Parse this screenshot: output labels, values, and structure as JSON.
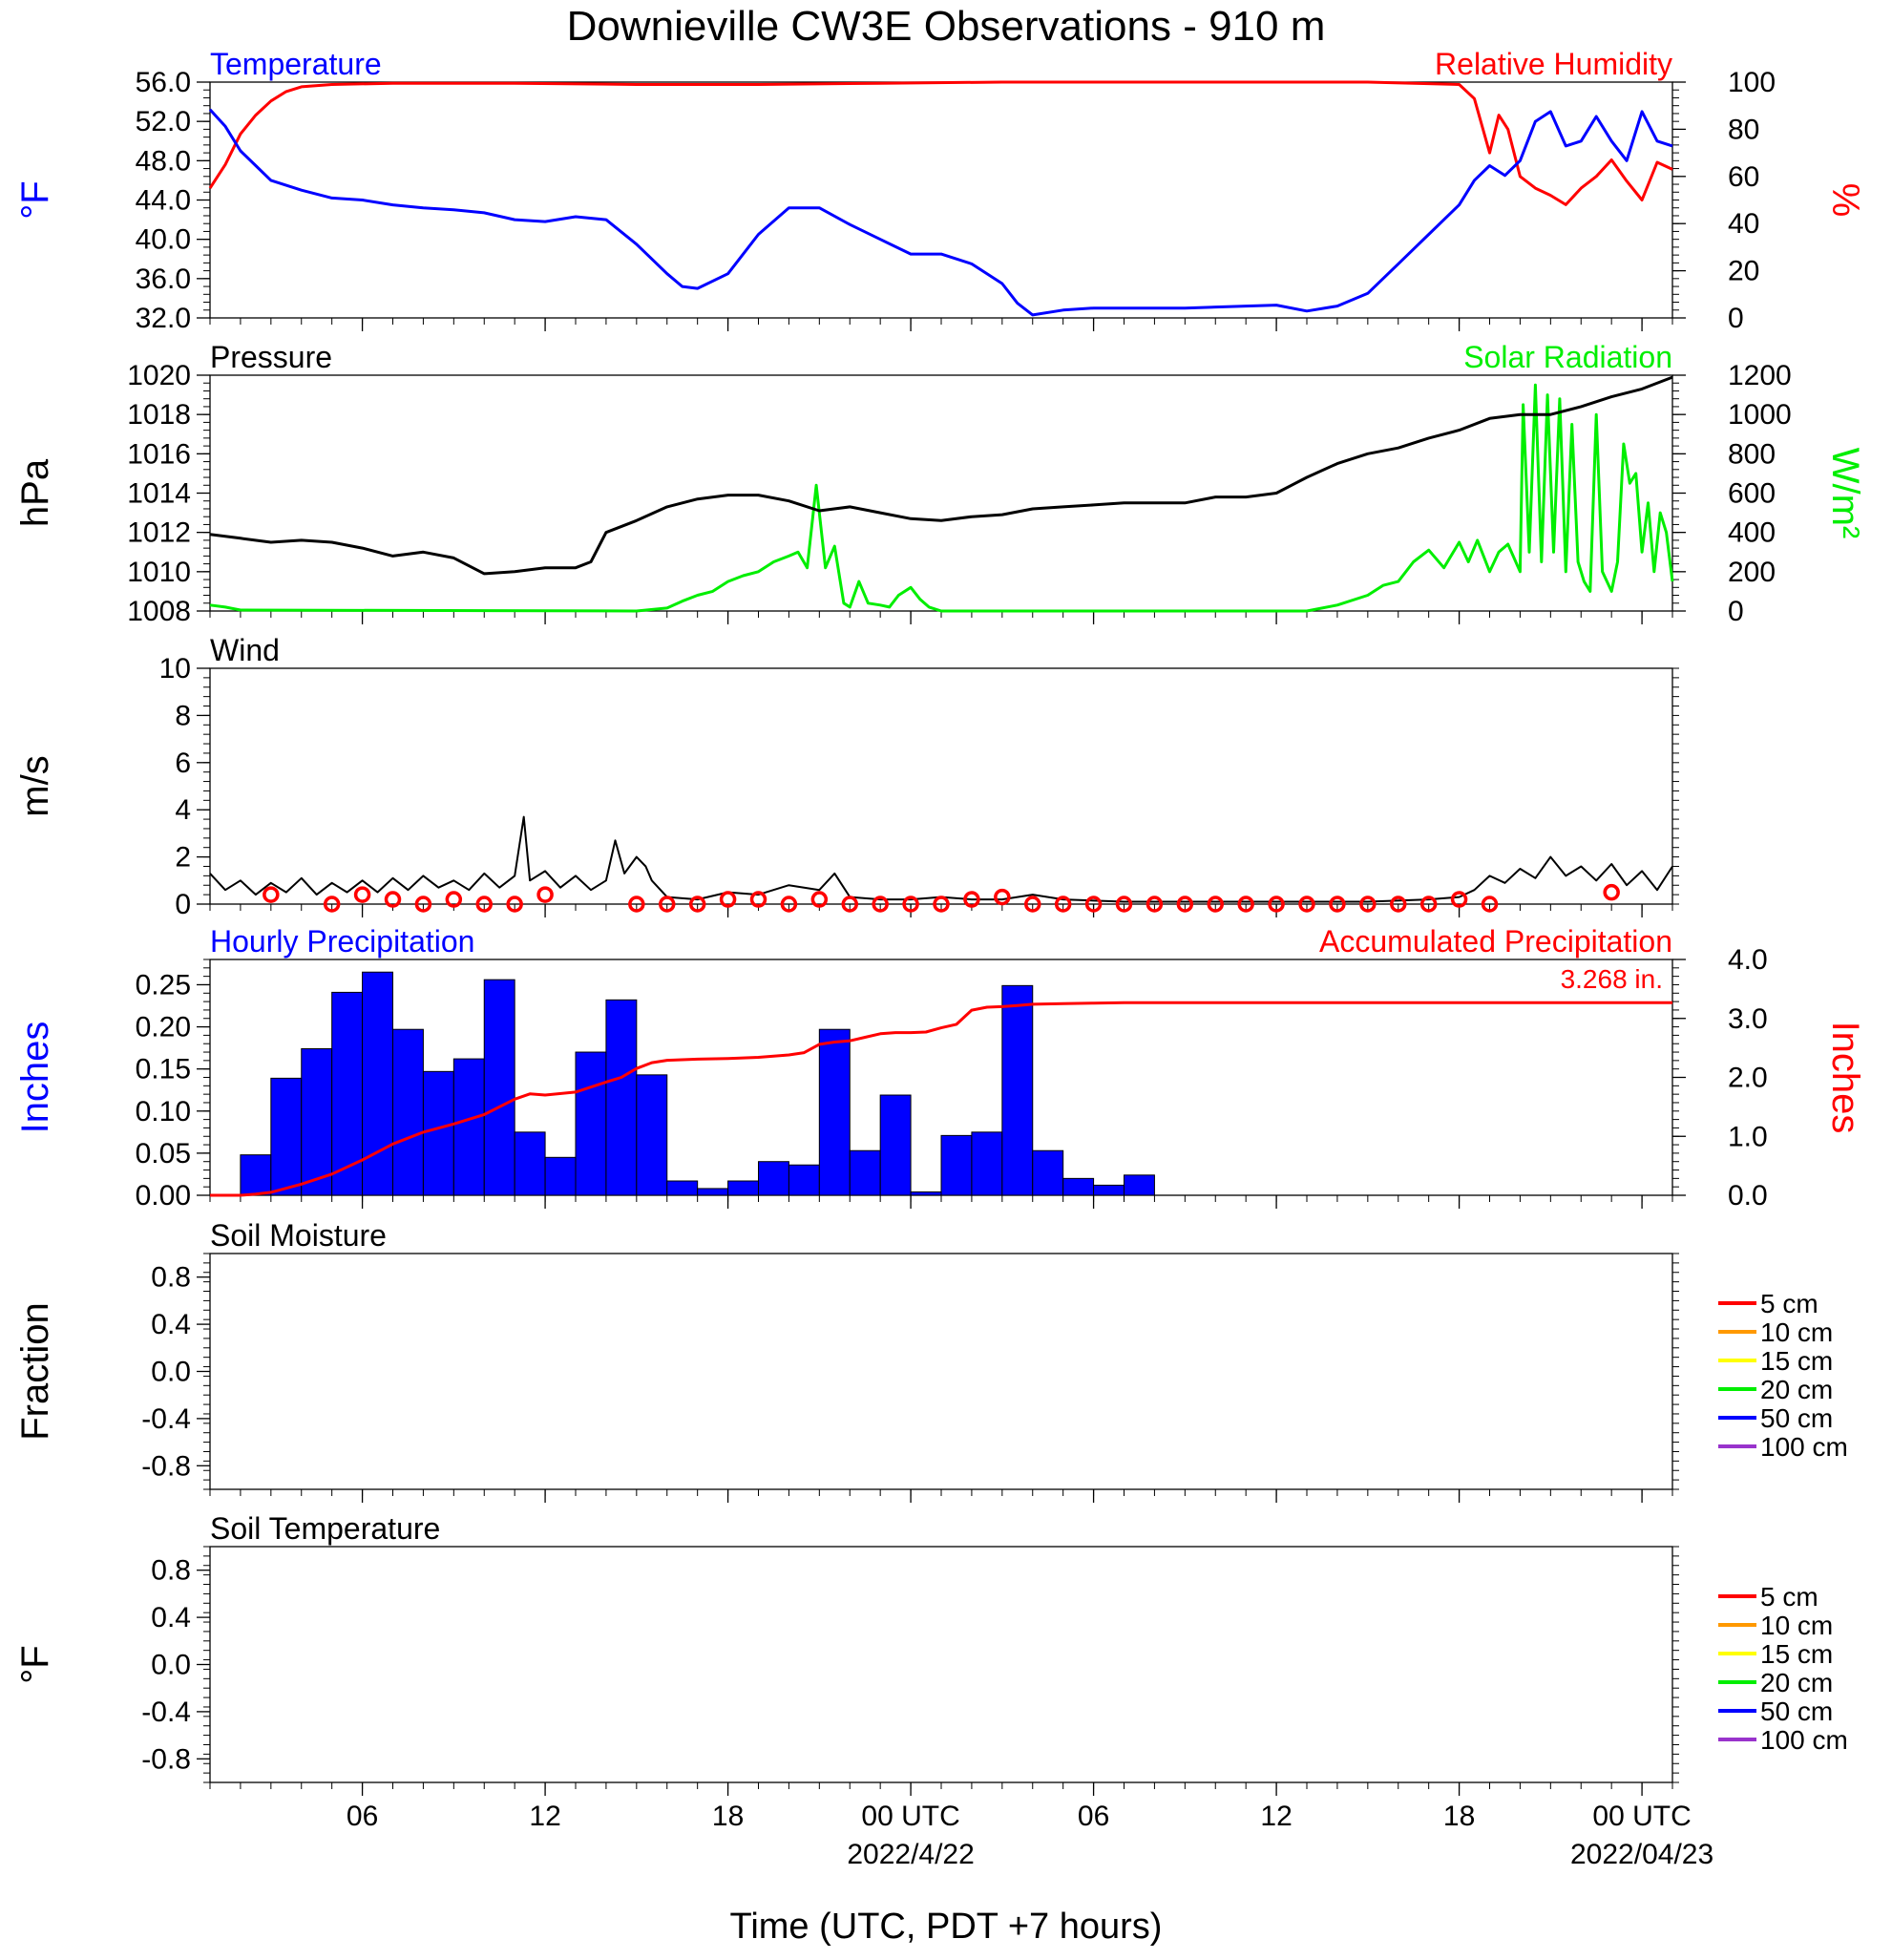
{
  "title": "Downieville CW3E Observations - 910 m",
  "x_axis": {
    "label": "Time (UTC, PDT +7 hours)",
    "range_hours": [
      0,
      48
    ],
    "ticks": [
      {
        "h": 5,
        "label": "06",
        "sub": ""
      },
      {
        "h": 11,
        "label": "12",
        "sub": ""
      },
      {
        "h": 17,
        "label": "18",
        "sub": ""
      },
      {
        "h": 23,
        "label": "00 UTC",
        "sub": "2022/4/22"
      },
      {
        "h": 29,
        "label": "06",
        "sub": ""
      },
      {
        "h": 35,
        "label": "12",
        "sub": ""
      },
      {
        "h": 41,
        "label": "18",
        "sub": ""
      },
      {
        "h": 47,
        "label": "00 UTC",
        "sub": "2022/04/23"
      }
    ]
  },
  "colors": {
    "temperature": "#0000ff",
    "humidity": "#ff0000",
    "pressure": "#000000",
    "solar": "#00ee00",
    "wind": "#000000",
    "wind_barb": "#ff0000",
    "precip_bar": "#0000ff",
    "precip_accum": "#ff0000"
  },
  "chart_data": [
    {
      "type": "line",
      "title_left": "Temperature",
      "title_right": "Relative Humidity",
      "ylabel_left": "°F",
      "ylabel_right": "%",
      "ylim_left": [
        32,
        56
      ],
      "ylim_right": [
        0,
        100
      ],
      "yticks_left": [
        "32.0",
        "36.0",
        "40.0",
        "44.0",
        "48.0",
        "52.0",
        "56.0"
      ],
      "yticks_right": [
        "0",
        "20",
        "40",
        "60",
        "80",
        "100"
      ],
      "series": [
        {
          "name": "Temperature",
          "axis": "left",
          "x": [
            0,
            0.5,
            1,
            1.5,
            2,
            3,
            4,
            5,
            6,
            7,
            8,
            9,
            10,
            11,
            12,
            13,
            14,
            15,
            15.5,
            16,
            17,
            18,
            19,
            20,
            21,
            22,
            23,
            24,
            25,
            26,
            26.5,
            27,
            28,
            29,
            30,
            32,
            34,
            35,
            36,
            37,
            38,
            39,
            40,
            41,
            41.5,
            42,
            42.5,
            43,
            43.5,
            44,
            44.5,
            45,
            45.5,
            46,
            46.5,
            47,
            47.5,
            48
          ],
          "y": [
            53.2,
            51.5,
            49,
            47.5,
            46,
            45,
            44.2,
            44,
            43.5,
            43.2,
            43,
            42.7,
            42,
            41.8,
            42.3,
            42,
            39.5,
            36.5,
            35.2,
            35,
            36.5,
            40.5,
            43.2,
            43.2,
            41.5,
            40,
            38.5,
            38.5,
            37.5,
            35.5,
            33.5,
            32.3,
            32.8,
            33,
            33,
            33,
            33.2,
            33.3,
            32.7,
            33.2,
            34.5,
            37.5,
            40.5,
            43.5,
            46,
            47.5,
            46.5,
            48,
            52,
            53,
            49.5,
            50,
            52.5,
            50,
            48,
            53,
            50,
            49.5
          ]
        },
        {
          "name": "Relative Humidity",
          "axis": "right",
          "x": [
            0,
            0.5,
            1,
            1.5,
            2,
            2.5,
            3,
            4,
            6,
            10,
            14,
            18,
            22,
            26,
            30,
            34,
            38,
            41,
            41.5,
            42,
            42.3,
            42.6,
            43,
            43.5,
            44,
            44.5,
            45,
            45.5,
            46,
            46.5,
            47,
            47.5,
            48
          ],
          "y": [
            55,
            65,
            78,
            86,
            92,
            96,
            98,
            99,
            99.5,
            99.5,
            99,
            99,
            99.5,
            100,
            100,
            100,
            100,
            99,
            93,
            70,
            86,
            80,
            60,
            55,
            52,
            48,
            55,
            60,
            67,
            58,
            50,
            66,
            63
          ]
        }
      ]
    },
    {
      "type": "line",
      "title_left": "Pressure",
      "title_right": "Solar Radiation",
      "ylabel_left": "hPa",
      "ylabel_right": "W/m²",
      "ylim_left": [
        1008,
        1020
      ],
      "ylim_right": [
        0,
        1200
      ],
      "yticks_left": [
        "1008",
        "1010",
        "1012",
        "1014",
        "1016",
        "1018",
        "1020"
      ],
      "yticks_right": [
        "0",
        "200",
        "400",
        "600",
        "800",
        "1000",
        "1200"
      ],
      "series": [
        {
          "name": "Pressure",
          "axis": "left",
          "x": [
            0,
            1,
            2,
            3,
            4,
            5,
            6,
            7,
            8,
            9,
            10,
            11,
            12,
            12.5,
            13,
            14,
            15,
            16,
            17,
            18,
            19,
            20,
            21,
            22,
            23,
            24,
            25,
            26,
            27,
            28,
            29,
            30,
            31,
            32,
            33,
            34,
            35,
            36,
            37,
            38,
            39,
            40,
            41,
            42,
            43,
            44,
            45,
            46,
            47,
            48
          ],
          "y": [
            1011.9,
            1011.7,
            1011.5,
            1011.6,
            1011.5,
            1011.2,
            1010.8,
            1011,
            1010.7,
            1009.9,
            1010,
            1010.2,
            1010.2,
            1010.5,
            1012,
            1012.6,
            1013.3,
            1013.7,
            1013.9,
            1013.9,
            1013.6,
            1013.1,
            1013.3,
            1013,
            1012.7,
            1012.6,
            1012.8,
            1012.9,
            1013.2,
            1013.3,
            1013.4,
            1013.5,
            1013.5,
            1013.5,
            1013.8,
            1013.8,
            1014,
            1014.8,
            1015.5,
            1016,
            1016.3,
            1016.8,
            1017.2,
            1017.8,
            1018,
            1018,
            1018.4,
            1018.9,
            1019.3,
            1019.9
          ]
        },
        {
          "name": "Solar Radiation",
          "axis": "right",
          "x": [
            0,
            0.5,
            1,
            14,
            15,
            15.5,
            16,
            16.5,
            17,
            17.5,
            18,
            18.5,
            19,
            19.3,
            19.6,
            19.9,
            20.2,
            20.5,
            20.8,
            21,
            21.3,
            21.6,
            22,
            22.3,
            22.6,
            23,
            23.3,
            23.6,
            24,
            25,
            30,
            36,
            37,
            38,
            38.5,
            39,
            39.5,
            40,
            40.5,
            41,
            41.3,
            41.6,
            42,
            42.3,
            42.6,
            43,
            43.1,
            43.3,
            43.5,
            43.7,
            43.9,
            44.1,
            44.3,
            44.5,
            44.7,
            44.9,
            45.1,
            45.3,
            45.5,
            45.7,
            46,
            46.2,
            46.4,
            46.6,
            46.8,
            47,
            47.2,
            47.4,
            47.6,
            47.8,
            48
          ],
          "y": [
            30,
            20,
            5,
            0,
            15,
            50,
            80,
            100,
            150,
            180,
            200,
            250,
            280,
            300,
            220,
            640,
            220,
            330,
            40,
            20,
            150,
            40,
            30,
            20,
            80,
            120,
            60,
            20,
            0,
            0,
            0,
            0,
            30,
            80,
            130,
            150,
            250,
            310,
            220,
            350,
            250,
            360,
            200,
            300,
            340,
            200,
            1050,
            300,
            1150,
            250,
            1100,
            300,
            1080,
            200,
            950,
            250,
            150,
            100,
            1000,
            200,
            100,
            250,
            850,
            650,
            700,
            300,
            550,
            200,
            500,
            400,
            150
          ]
        }
      ]
    },
    {
      "type": "line",
      "title_left": "Wind",
      "ylabel_left": "m/s",
      "ylim_left": [
        0,
        10
      ],
      "yticks_left": [
        "0",
        "2",
        "4",
        "6",
        "8",
        "10"
      ],
      "series": [
        {
          "name": "Wind",
          "x": [
            0,
            0.5,
            1,
            1.5,
            2,
            2.5,
            3,
            3.5,
            4,
            4.5,
            5,
            5.5,
            6,
            6.5,
            7,
            7.5,
            8,
            8.5,
            9,
            9.5,
            10,
            10.3,
            10.5,
            11,
            11.5,
            12,
            12.5,
            13,
            13.3,
            13.6,
            14,
            14.3,
            14.5,
            15,
            16,
            17,
            18,
            19,
            20,
            20.5,
            21,
            22,
            23,
            24,
            25,
            26,
            27,
            28,
            30,
            32,
            34,
            36,
            38,
            40,
            41,
            41.5,
            42,
            42.5,
            43,
            43.5,
            44,
            44.5,
            45,
            45.5,
            46,
            46.5,
            47,
            47.5,
            48
          ],
          "y": [
            1.3,
            0.6,
            1.0,
            0.4,
            0.9,
            0.5,
            1.1,
            0.4,
            0.9,
            0.5,
            1.0,
            0.5,
            1.1,
            0.6,
            1.2,
            0.7,
            1.0,
            0.6,
            1.3,
            0.7,
            1.2,
            3.7,
            1.0,
            1.4,
            0.7,
            1.2,
            0.6,
            1.0,
            2.7,
            1.3,
            2.0,
            1.6,
            1.0,
            0.3,
            0.2,
            0.5,
            0.4,
            0.8,
            0.6,
            1.3,
            0.3,
            0.2,
            0.2,
            0.3,
            0.2,
            0.2,
            0.4,
            0.2,
            0.1,
            0.1,
            0.1,
            0.1,
            0.1,
            0.2,
            0.3,
            0.6,
            1.2,
            0.9,
            1.5,
            1.1,
            2.0,
            1.2,
            1.6,
            1.0,
            1.7,
            0.8,
            1.4,
            0.6,
            1.6
          ]
        },
        {
          "name": "Wind barbs",
          "x": [
            2,
            4,
            5,
            6,
            7,
            8,
            9,
            10,
            11,
            14,
            15,
            16,
            17,
            18,
            19,
            20,
            21,
            22,
            23,
            24,
            25,
            26,
            27,
            28,
            29,
            30,
            31,
            32,
            33,
            34,
            35,
            36,
            37,
            38,
            39,
            40,
            41,
            42,
            46
          ],
          "y": [
            0.4,
            0.0,
            0.4,
            0.2,
            0.0,
            0.2,
            0.0,
            0.0,
            0.4,
            0.0,
            0.0,
            0.0,
            0.2,
            0.2,
            0.0,
            0.2,
            0.0,
            0.0,
            0.0,
            0.0,
            0.2,
            0.3,
            0.0,
            0.0,
            0.0,
            0.0,
            0.0,
            0.0,
            0.0,
            0.0,
            0.0,
            0.0,
            0.0,
            0.0,
            0.0,
            0.0,
            0.2,
            0.0,
            0.5
          ]
        }
      ]
    },
    {
      "type": "bar",
      "title_left": "Hourly Precipitation",
      "title_right": "Accumulated Precipitation",
      "annotation": "3.268 in.",
      "ylabel_left": "Inches",
      "ylabel_right": "Inches",
      "ylim_left": [
        0,
        0.28
      ],
      "ylim_right": [
        0,
        4.0
      ],
      "yticks_left": [
        "0.00",
        "0.05",
        "0.10",
        "0.15",
        "0.20",
        "0.25"
      ],
      "yticks_right": [
        "0.0",
        "1.0",
        "2.0",
        "3.0",
        "4.0"
      ],
      "series": [
        {
          "name": "Hourly Precipitation",
          "x_start": 1,
          "values": [
            0.048,
            0.139,
            0.174,
            0.241,
            0.265,
            0.197,
            0.147,
            0.162,
            0.256,
            0.075,
            0.045,
            0.17,
            0.232,
            0.143,
            0.017,
            0.008,
            0.017,
            0.04,
            0.036,
            0.197,
            0.053,
            0.119,
            0.004,
            0.071,
            0.075,
            0.249,
            0.053,
            0.02,
            0.012,
            0.024
          ]
        },
        {
          "name": "Accumulated Precipitation",
          "x": [
            0,
            1,
            1.5,
            2,
            3,
            4,
            5,
            6,
            7,
            8,
            9,
            10,
            10.5,
            11,
            12,
            13,
            13.5,
            14,
            14.5,
            15,
            16,
            17,
            18,
            19,
            19.5,
            20,
            20.5,
            21,
            21.5,
            22,
            22.5,
            23,
            23.5,
            24,
            24.5,
            25,
            25.5,
            26,
            26.5,
            27,
            28,
            29,
            30,
            35,
            40,
            45,
            48
          ],
          "y": [
            0,
            0,
            0.02,
            0.05,
            0.19,
            0.36,
            0.6,
            0.87,
            1.07,
            1.21,
            1.37,
            1.63,
            1.72,
            1.7,
            1.75,
            1.92,
            2.0,
            2.15,
            2.25,
            2.29,
            2.31,
            2.32,
            2.34,
            2.38,
            2.42,
            2.56,
            2.6,
            2.62,
            2.68,
            2.74,
            2.76,
            2.76,
            2.77,
            2.84,
            2.9,
            3.14,
            3.19,
            3.2,
            3.22,
            3.24,
            3.25,
            3.26,
            3.268,
            3.268,
            3.268,
            3.268,
            3.268
          ]
        }
      ]
    },
    {
      "type": "line",
      "title_left": "Soil Moisture",
      "ylabel_left": "Fraction",
      "ylim_left": [
        -1.0,
        1.0
      ],
      "yticks_left": [
        "-0.8",
        "-0.4",
        "0.0",
        "0.4",
        "0.8"
      ],
      "legend": [
        "5 cm",
        "10 cm",
        "15 cm",
        "20 cm",
        "50 cm",
        "100 cm"
      ],
      "series": []
    },
    {
      "type": "line",
      "title_left": "Soil Temperature",
      "ylabel_left": "°F",
      "ylim_left": [
        -1.0,
        1.0
      ],
      "yticks_left": [
        "-0.8",
        "-0.4",
        "0.0",
        "0.4",
        "0.8"
      ],
      "legend": [
        "5 cm",
        "10 cm",
        "15 cm",
        "20 cm",
        "50 cm",
        "100 cm"
      ],
      "series": []
    }
  ],
  "legend_colors": [
    "#ff0000",
    "#ff9900",
    "#ffff00",
    "#00ee00",
    "#0000ff",
    "#9933cc"
  ]
}
